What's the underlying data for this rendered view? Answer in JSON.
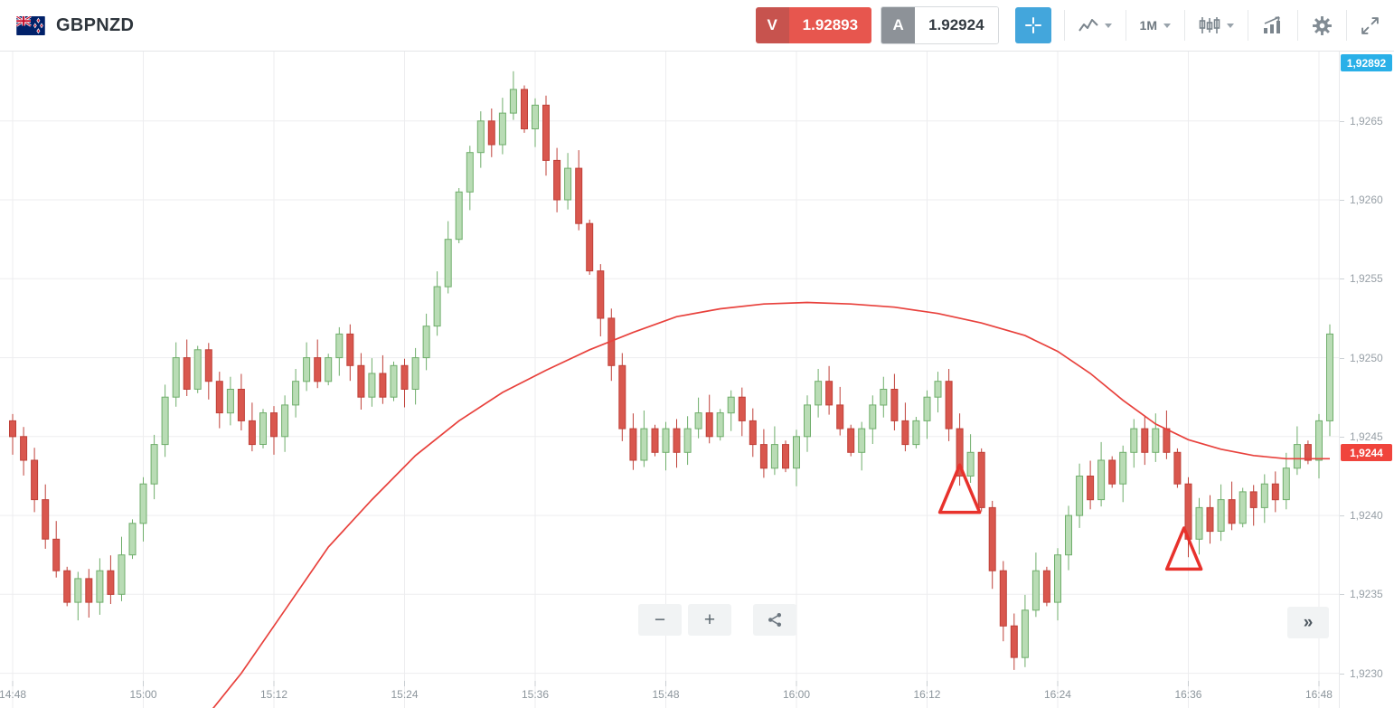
{
  "topbar": {
    "symbol": "GBPNZD",
    "sell": {
      "label": "V",
      "price": "1.92893"
    },
    "buy": {
      "label": "A",
      "price": "1.92924"
    },
    "timeframe": "1M",
    "icons": [
      "nz-flag-icon",
      "crosshair-icon",
      "chart-type-icon",
      "candle-style-icon",
      "analytics-icon",
      "settings-gear-icon",
      "fullscreen-icon"
    ]
  },
  "controls": {
    "zoom_out": "−",
    "zoom_in": "+",
    "collapse": "»"
  },
  "chart": {
    "current_price_tag": "1,92892",
    "last_price_tag": "1,9244"
  },
  "colors": {
    "accent_blue": "#43a6dc",
    "sell_red": "#e7564e",
    "buy_gray": "#8d9298",
    "grid": "#ededef",
    "candle_up_fill": "#b9dcb5",
    "candle_up_stroke": "#6fae6b",
    "candle_down_fill": "#d9574e",
    "candle_down_stroke": "#bf4038",
    "ma_line": "#e8413c",
    "marker": "#e8322c",
    "tag_cyan": "#29b0e8",
    "tag_red": "#f0443c"
  },
  "chart_data": {
    "type": "candlestick",
    "symbol": "GBPNZD",
    "interval": "1M",
    "y_range": [
      1.92278,
      1.92694
    ],
    "price_ticks": [
      "1,9265",
      "1,9260",
      "1,9255",
      "1,9250",
      "1,9245",
      "1,9240",
      "1,9235",
      "1,9230"
    ],
    "time_ticks": [
      {
        "index": 1,
        "label": "14:48"
      },
      {
        "index": 13,
        "label": "15:00"
      },
      {
        "index": 25,
        "label": "15:12"
      },
      {
        "index": 37,
        "label": "15:24"
      },
      {
        "index": 49,
        "label": "15:36"
      },
      {
        "index": 61,
        "label": "15:48"
      },
      {
        "index": 73,
        "label": "16:00"
      },
      {
        "index": 85,
        "label": "16:12"
      },
      {
        "index": 97,
        "label": "16:24"
      },
      {
        "index": 109,
        "label": "16:36"
      },
      {
        "index": 121,
        "label": "16:48"
      }
    ],
    "start_time": "14:47",
    "closes": [
      1.9246,
      1.9245,
      1.92435,
      1.9241,
      1.92385,
      1.92365,
      1.92345,
      1.9236,
      1.92345,
      1.92365,
      1.9235,
      1.92375,
      1.92395,
      1.9242,
      1.92445,
      1.92475,
      1.925,
      1.9248,
      1.92505,
      1.92485,
      1.92465,
      1.9248,
      1.9246,
      1.92445,
      1.92465,
      1.9245,
      1.9247,
      1.92485,
      1.925,
      1.92485,
      1.925,
      1.92515,
      1.92495,
      1.92475,
      1.9249,
      1.92475,
      1.92495,
      1.9248,
      1.925,
      1.9252,
      1.92545,
      1.92575,
      1.92605,
      1.9263,
      1.9265,
      1.92635,
      1.92655,
      1.9267,
      1.92645,
      1.9266,
      1.92625,
      1.926,
      1.9262,
      1.92585,
      1.92555,
      1.92525,
      1.92495,
      1.92455,
      1.92435,
      1.92455,
      1.9244,
      1.92455,
      1.9244,
      1.92455,
      1.92465,
      1.9245,
      1.92465,
      1.92475,
      1.9246,
      1.92445,
      1.9243,
      1.92445,
      1.9243,
      1.9245,
      1.9247,
      1.92485,
      1.9247,
      1.92455,
      1.9244,
      1.92455,
      1.9247,
      1.9248,
      1.9246,
      1.92445,
      1.9246,
      1.92475,
      1.92485,
      1.92455,
      1.92425,
      1.9244,
      1.92405,
      1.92365,
      1.9233,
      1.9231,
      1.9234,
      1.92365,
      1.92345,
      1.92375,
      1.924,
      1.92425,
      1.9241,
      1.92435,
      1.9242,
      1.9244,
      1.92455,
      1.9244,
      1.92455,
      1.9244,
      1.9242,
      1.92385,
      1.92405,
      1.9239,
      1.9241,
      1.92395,
      1.92415,
      1.92405,
      1.9242,
      1.9241,
      1.9243,
      1.92445,
      1.92435,
      1.9246,
      1.92515
    ],
    "ma_points": [
      [
        18.5,
        1.9227
      ],
      [
        22,
        1.923
      ],
      [
        26,
        1.9234
      ],
      [
        30,
        1.9238
      ],
      [
        34,
        1.9241
      ],
      [
        38,
        1.92438
      ],
      [
        42,
        1.9246
      ],
      [
        46,
        1.92478
      ],
      [
        50,
        1.92492
      ],
      [
        54,
        1.92505
      ],
      [
        58,
        1.92516
      ],
      [
        62,
        1.92526
      ],
      [
        66,
        1.92531
      ],
      [
        70,
        1.92534
      ],
      [
        74,
        1.92535
      ],
      [
        78,
        1.92534
      ],
      [
        82,
        1.92532
      ],
      [
        86,
        1.92528
      ],
      [
        90,
        1.92522
      ],
      [
        94,
        1.92514
      ],
      [
        97,
        1.92504
      ],
      [
        100,
        1.9249
      ],
      [
        103,
        1.92473
      ],
      [
        106,
        1.92458
      ],
      [
        109,
        1.92448
      ],
      [
        112,
        1.92442
      ],
      [
        115,
        1.92438
      ],
      [
        118,
        1.92436
      ],
      [
        122,
        1.92436
      ]
    ],
    "markers": [
      {
        "index": 88,
        "apex_price": 1.92432,
        "base_price": 1.92402,
        "half_width": 22
      },
      {
        "index": 108.6,
        "apex_price": 1.92392,
        "base_price": 1.92366,
        "half_width": 19
      }
    ]
  }
}
